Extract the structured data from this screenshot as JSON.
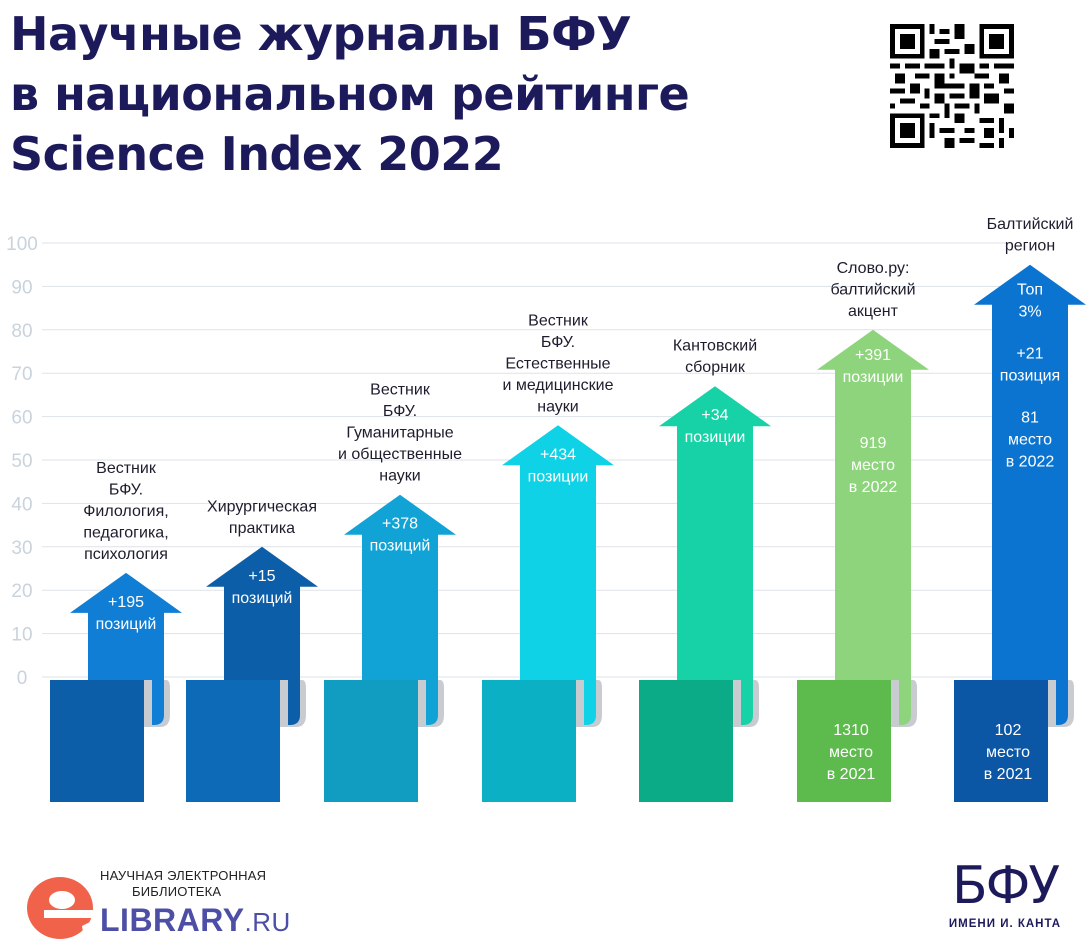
{
  "title": {
    "line1": "Научные журналы БФУ",
    "line2": "в национальном рейтинге",
    "line3": "Science Index 2022"
  },
  "qr_icon": "qr-code-icon",
  "chart_data": {
    "type": "bar",
    "ylim": [
      0,
      100
    ],
    "yticks": [
      0,
      10,
      20,
      30,
      40,
      50,
      60,
      70,
      80,
      90,
      100
    ],
    "grid": true,
    "colors": {
      "bars": [
        "#0f7ed4",
        "#0d5ea8",
        "#12a3d6",
        "#0fd2e6",
        "#16d2a6",
        "#8dd47c",
        "#0b74d0"
      ],
      "scrolls": [
        "#0d5ea8",
        "#0d6ab6",
        "#119cc2",
        "#0bb0c5",
        "#0aab86",
        "#5dba4c",
        "#0b56a5"
      ]
    },
    "series": [
      {
        "values": [
          24,
          30,
          42,
          58,
          67,
          80,
          95
        ]
      }
    ],
    "categories": [
      [
        "Вестник",
        "БФУ.",
        "Филология,",
        "педагогика,",
        "психология"
      ],
      [
        "Хирургическая",
        "практика"
      ],
      [
        "Вестник",
        "БФУ.",
        "Гуманитарные",
        "и общественные",
        "науки"
      ],
      [
        "Вестник",
        "БФУ.",
        "Естественные",
        "и медицинские",
        "науки"
      ],
      [
        "Кантовский",
        "сборник"
      ],
      [
        "Слово.ру:",
        "балтийский",
        "акцент"
      ],
      [
        "Балтийский",
        "регион"
      ]
    ],
    "arrow_labels": [
      [
        [
          "+195",
          "позиций"
        ]
      ],
      [
        [
          "+15",
          "позиций"
        ]
      ],
      [
        [
          "+378",
          "позиций"
        ]
      ],
      [
        [
          "+434",
          "позиции"
        ]
      ],
      [
        [
          "+34",
          "позиции"
        ]
      ],
      [
        [
          "+391",
          "позиции"
        ],
        [
          "919",
          "место",
          "в 2022"
        ]
      ],
      [
        [
          "Топ",
          "3%"
        ],
        [
          "+21",
          "позиция"
        ],
        [
          "81",
          "место",
          "в 2022"
        ]
      ]
    ],
    "scroll_labels": [
      [],
      [],
      [],
      [],
      [],
      [
        "1310",
        "место",
        "в 2021"
      ],
      [
        "102",
        "место",
        "в 2021"
      ]
    ]
  },
  "footer": {
    "elibrary_line1": "НАУЧНАЯ ЭЛЕКТРОННАЯ",
    "elibrary_line2": "БИБЛИОТЕКА",
    "elibrary_brand": "LIBRARY",
    "elibrary_tld": ".RU",
    "elibrary_icon": "elibrary-e-icon",
    "bfu_logo": "БФУ",
    "bfu_sub": "ИМЕНИ И. КАНТА"
  }
}
